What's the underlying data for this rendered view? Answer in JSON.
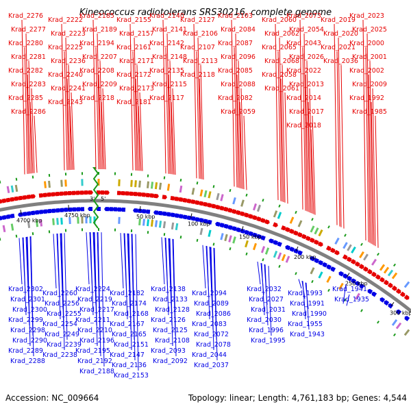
{
  "title": "Kineococcus radiotolerans SRS30216, complete genome",
  "footer": {
    "accession": "Accession: NC_009664",
    "summary": "Topology: linear; Length: 4,761,183 bp; Genes: 4,544"
  },
  "origin_labels": [
    "3'",
    "5'"
  ],
  "colors": {
    "plus_strand": "#e60000",
    "minus_strand": "#0000e6",
    "backbone": "#808080",
    "marker": "#1a9a1a"
  },
  "axis_ticks": [
    "4700 kbp",
    "4750 kbp",
    "50 kbp",
    "100 kbp",
    "150 kbp",
    "200 kbp",
    "250 kbp",
    "300 kbp"
  ],
  "plus_labels": [
    "Krad_2276",
    "Krad_2277",
    "Krad_2280",
    "Krad_2281",
    "Krad_2282",
    "Krad_2283",
    "Krad_2285",
    "Krad_2286",
    "Krad_2222",
    "Krad_2223",
    "Krad_2225",
    "Krad_2236",
    "Krad_2240",
    "Krad_2241",
    "Krad_2243",
    "Krad_2185",
    "Krad_2189",
    "Krad_2194",
    "Krad_2207",
    "Krad_2208",
    "Krad_2209",
    "Krad_2218",
    "Krad_2155",
    "Krad_2157",
    "Krad_2161",
    "Krad_2171",
    "Krad_2172",
    "Krad_2173",
    "Krad_2181",
    "Krad_2140",
    "Krad_2141",
    "Krad_2142",
    "Krad_2148",
    "Krad_2135",
    "Krad_2115",
    "Krad_2117",
    "Krad_2127",
    "Krad_2106",
    "Krad_2107",
    "Krad_2113",
    "Krad_2118",
    "Krad_2103",
    "Krad_2084",
    "Krad_2087",
    "Krad_2096",
    "Krad_2085",
    "Krad_2088",
    "Krad_2082",
    "Krad_2059",
    "Krad_2060",
    "Krad_2062",
    "Krad_2065",
    "Krad_2068",
    "Krad_2058",
    "Krad_2061",
    "Krad_2073",
    "Krad_2054",
    "Krad_2043",
    "Krad_2026",
    "Krad_2022",
    "Krad_2013",
    "Krad_2014",
    "Krad_2017",
    "Krad_2018",
    "Krad_2019",
    "Krad_2020",
    "Krad_2021",
    "Krad_2036",
    "Krad_2023",
    "Krad_2025",
    "Krad_2000",
    "Krad_2001",
    "Krad_2002",
    "Krad_2009",
    "Krad_1992",
    "Krad_1985"
  ],
  "minus_labels": [
    "Krad_2302",
    "Krad_2301",
    "Krad_2300",
    "Krad_2299",
    "Krad_2298",
    "Krad_2290",
    "Krad_2289",
    "Krad_2288",
    "Krad_2260",
    "Krad_2256",
    "Krad_2255",
    "Krad_2254",
    "Krad_2249",
    "Krad_2239",
    "Krad_2238",
    "Krad_2224",
    "Krad_2219",
    "Krad_2217",
    "Krad_2211",
    "Krad_2210",
    "Krad_2196",
    "Krad_2195",
    "Krad_2192",
    "Krad_2188",
    "Krad_2182",
    "Krad_2174",
    "Krad_2168",
    "Krad_2167",
    "Krad_2165",
    "Krad_2151",
    "Krad_2147",
    "Krad_2136",
    "Krad_2153",
    "Krad_2138",
    "Krad_2133",
    "Krad_2128",
    "Krad_2126",
    "Krad_2125",
    "Krad_2108",
    "Krad_2093",
    "Krad_2092",
    "Krad_2094",
    "Krad_2089",
    "Krad_2086",
    "Krad_2083",
    "Krad_2072",
    "Krad_2078",
    "Krad_2044",
    "Krad_2037",
    "Krad_2032",
    "Krad_2027",
    "Krad_2031",
    "Krad_2030",
    "Krad_1996",
    "Krad_1995",
    "Krad_1993",
    "Krad_1991",
    "Krad_1990",
    "Krad_1955",
    "Krad_1943",
    "Krad_1941",
    "Krad_1935"
  ]
}
